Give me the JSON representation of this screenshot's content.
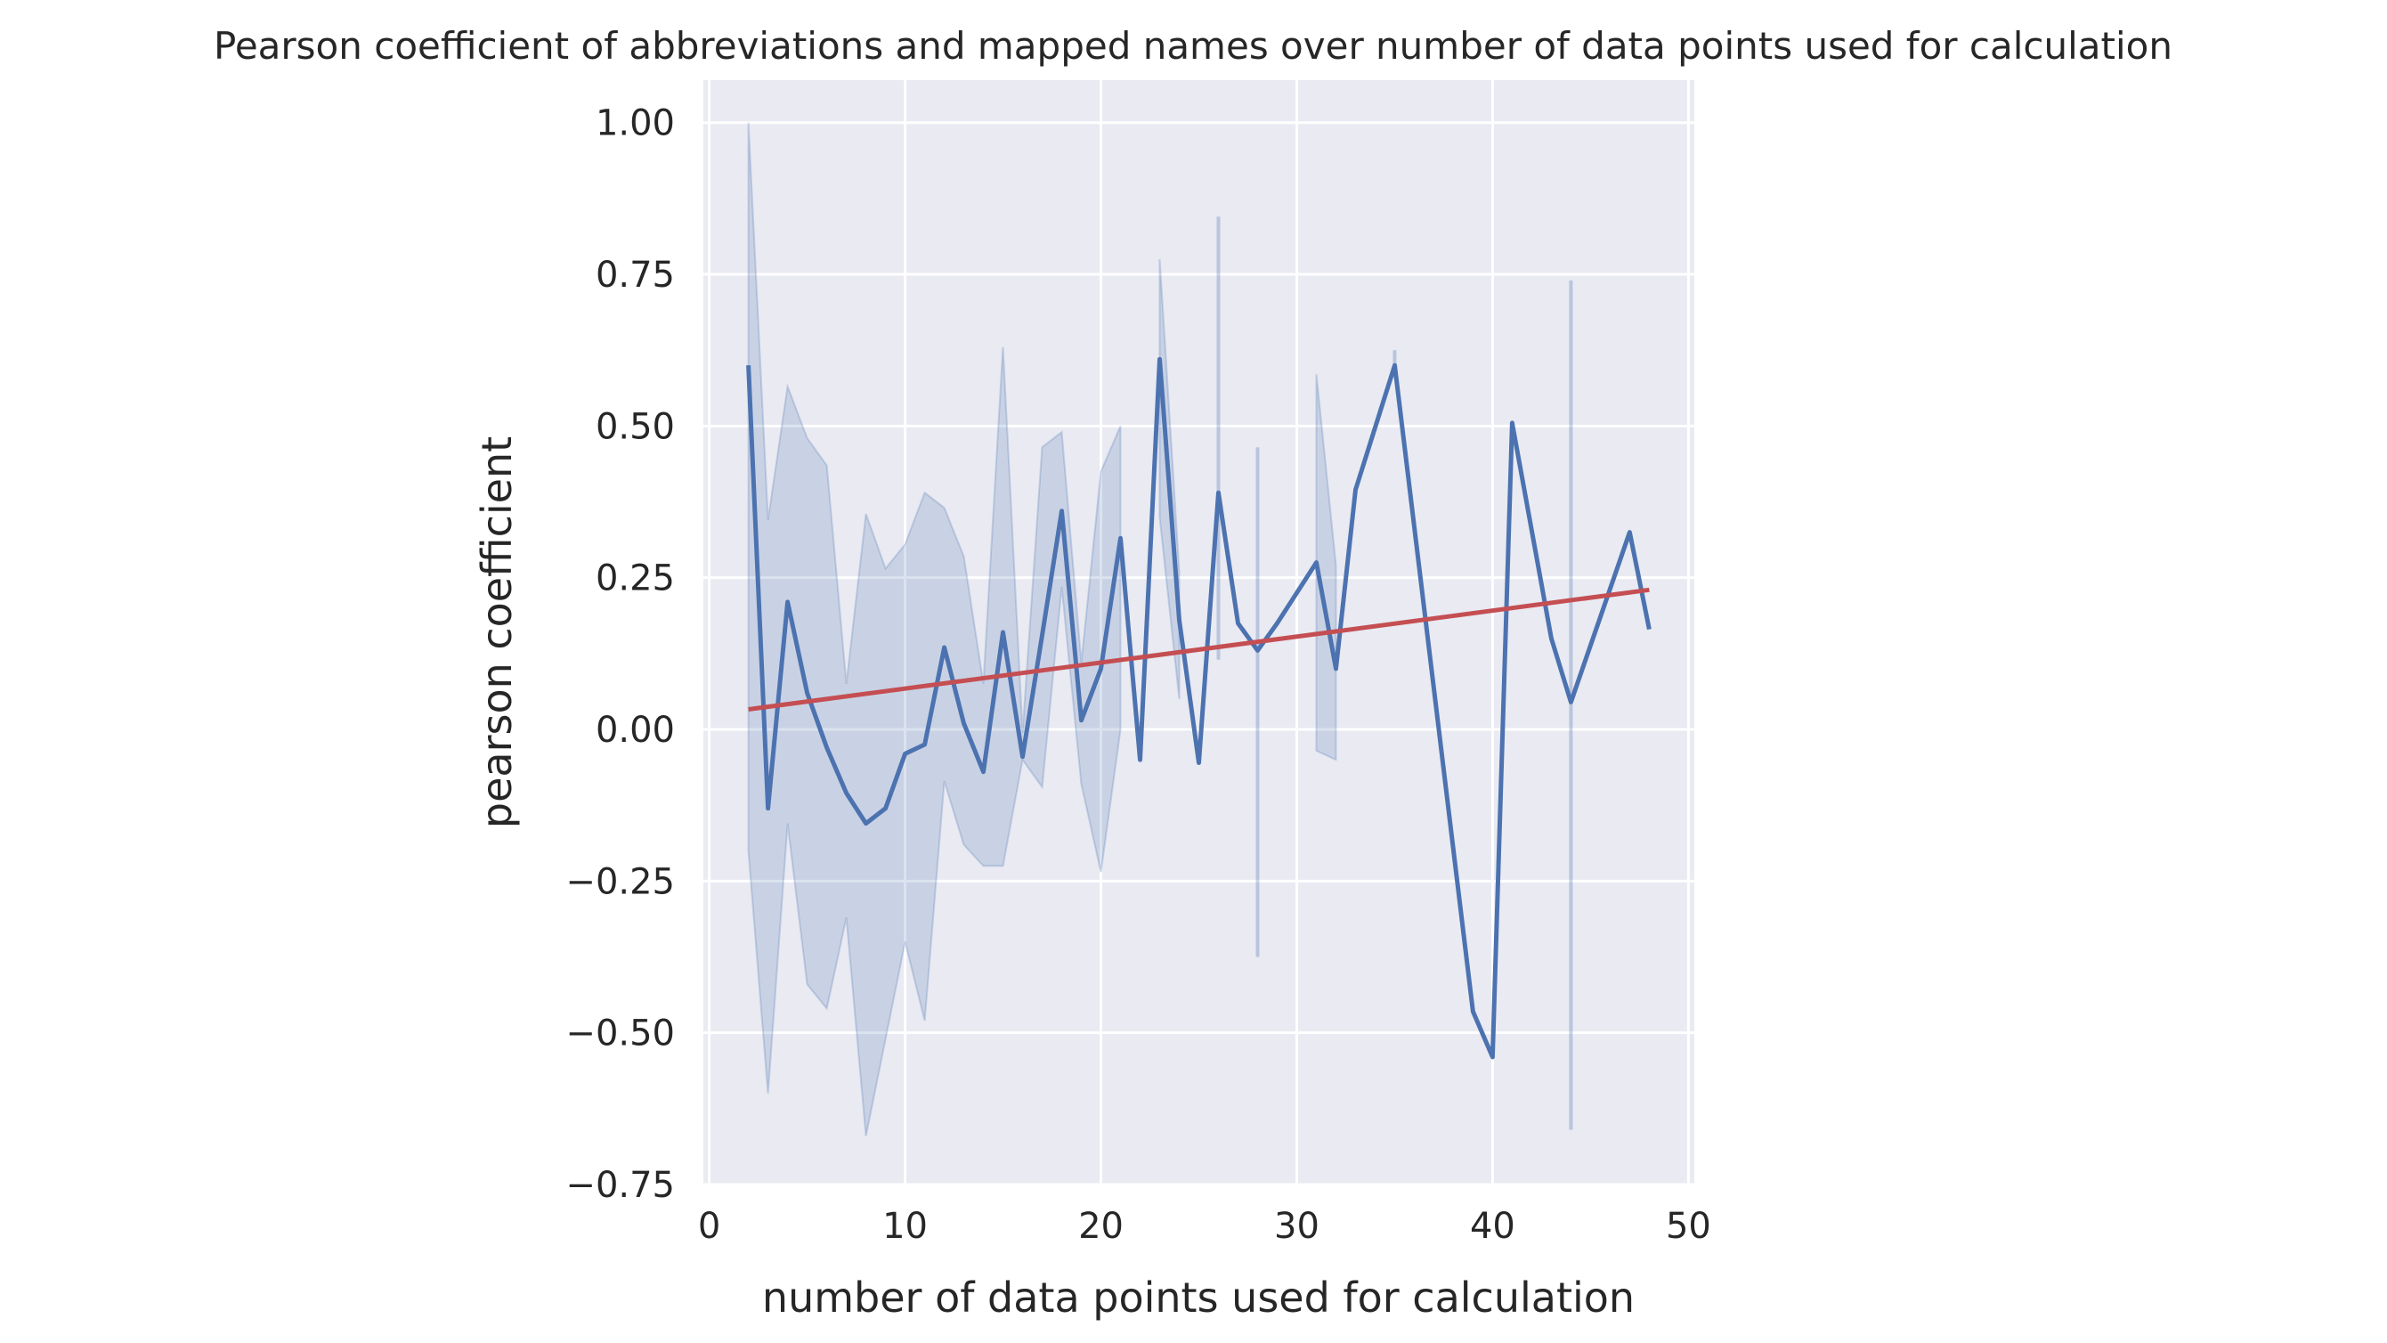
{
  "chart_data": {
    "type": "line",
    "title": "Pearson coefficient of abbreviations and mapped names over number of data points used for calculation",
    "xlabel": "number of data points used for calculation",
    "ylabel": "pearson coefficient",
    "xlim": [
      -0.3,
      50.3
    ],
    "ylim": [
      -0.75,
      1.07
    ],
    "xticks": [
      0,
      10,
      20,
      30,
      40,
      50
    ],
    "xtick_labels": [
      "0",
      "10",
      "20",
      "30",
      "40",
      "50"
    ],
    "yticks": [
      -0.75,
      -0.5,
      -0.25,
      0.0,
      0.25,
      0.5,
      0.75,
      1.0
    ],
    "ytick_labels": [
      "−0.75",
      "−0.50",
      "−0.25",
      "0.00",
      "0.25",
      "0.50",
      "0.75",
      "1.00"
    ],
    "grid": true,
    "legend": "none",
    "background": "#e9eaf2",
    "series": [
      {
        "kind": "mean-line",
        "color": "#4c72b0",
        "x": [
          2,
          3,
          4,
          5,
          6,
          7,
          8,
          9,
          10,
          11,
          12,
          13,
          14,
          15,
          16,
          17,
          18,
          19,
          20,
          21,
          22,
          23,
          24,
          25,
          26,
          27,
          28,
          29,
          31,
          32,
          33,
          35,
          39,
          40,
          41,
          43,
          44,
          47,
          48
        ],
        "y": [
          0.6,
          -0.13,
          0.21,
          0.06,
          -0.03,
          -0.105,
          -0.155,
          -0.13,
          -0.04,
          -0.025,
          0.135,
          0.01,
          -0.07,
          0.16,
          -0.045,
          0.155,
          0.36,
          0.015,
          0.1,
          0.315,
          -0.05,
          0.61,
          0.18,
          -0.055,
          0.39,
          0.175,
          0.13,
          0.175,
          0.275,
          0.1,
          0.395,
          0.6,
          -0.465,
          -0.54,
          0.505,
          0.15,
          0.045,
          0.325,
          0.165
        ]
      },
      {
        "kind": "confidence-band",
        "color": "#4c72b0",
        "x": [
          2,
          3,
          4,
          5,
          6,
          7,
          8,
          9,
          10,
          11,
          12,
          13,
          14,
          15,
          16,
          17,
          18,
          19,
          20,
          21,
          23,
          24,
          26,
          28,
          31,
          32,
          35,
          44
        ],
        "lower": [
          -0.2,
          -0.6,
          -0.155,
          -0.42,
          -0.46,
          -0.31,
          -0.67,
          -0.51,
          -0.35,
          -0.48,
          -0.085,
          -0.19,
          -0.225,
          -0.225,
          -0.05,
          -0.095,
          0.235,
          -0.09,
          -0.235,
          0.0,
          0.35,
          0.05,
          0.115,
          -0.375,
          -0.035,
          -0.05,
          0.58,
          -0.66
        ],
        "upper": [
          1.0,
          0.345,
          0.565,
          0.48,
          0.435,
          0.075,
          0.355,
          0.265,
          0.305,
          0.39,
          0.365,
          0.285,
          0.075,
          0.63,
          -0.005,
          0.465,
          0.49,
          0.11,
          0.425,
          0.5,
          0.775,
          0.26,
          0.845,
          0.465,
          0.585,
          0.27,
          0.625,
          0.74
        ]
      },
      {
        "kind": "trend-line",
        "color": "#c44e52",
        "x": [
          2,
          48
        ],
        "y": [
          0.033,
          0.23
        ]
      }
    ]
  }
}
